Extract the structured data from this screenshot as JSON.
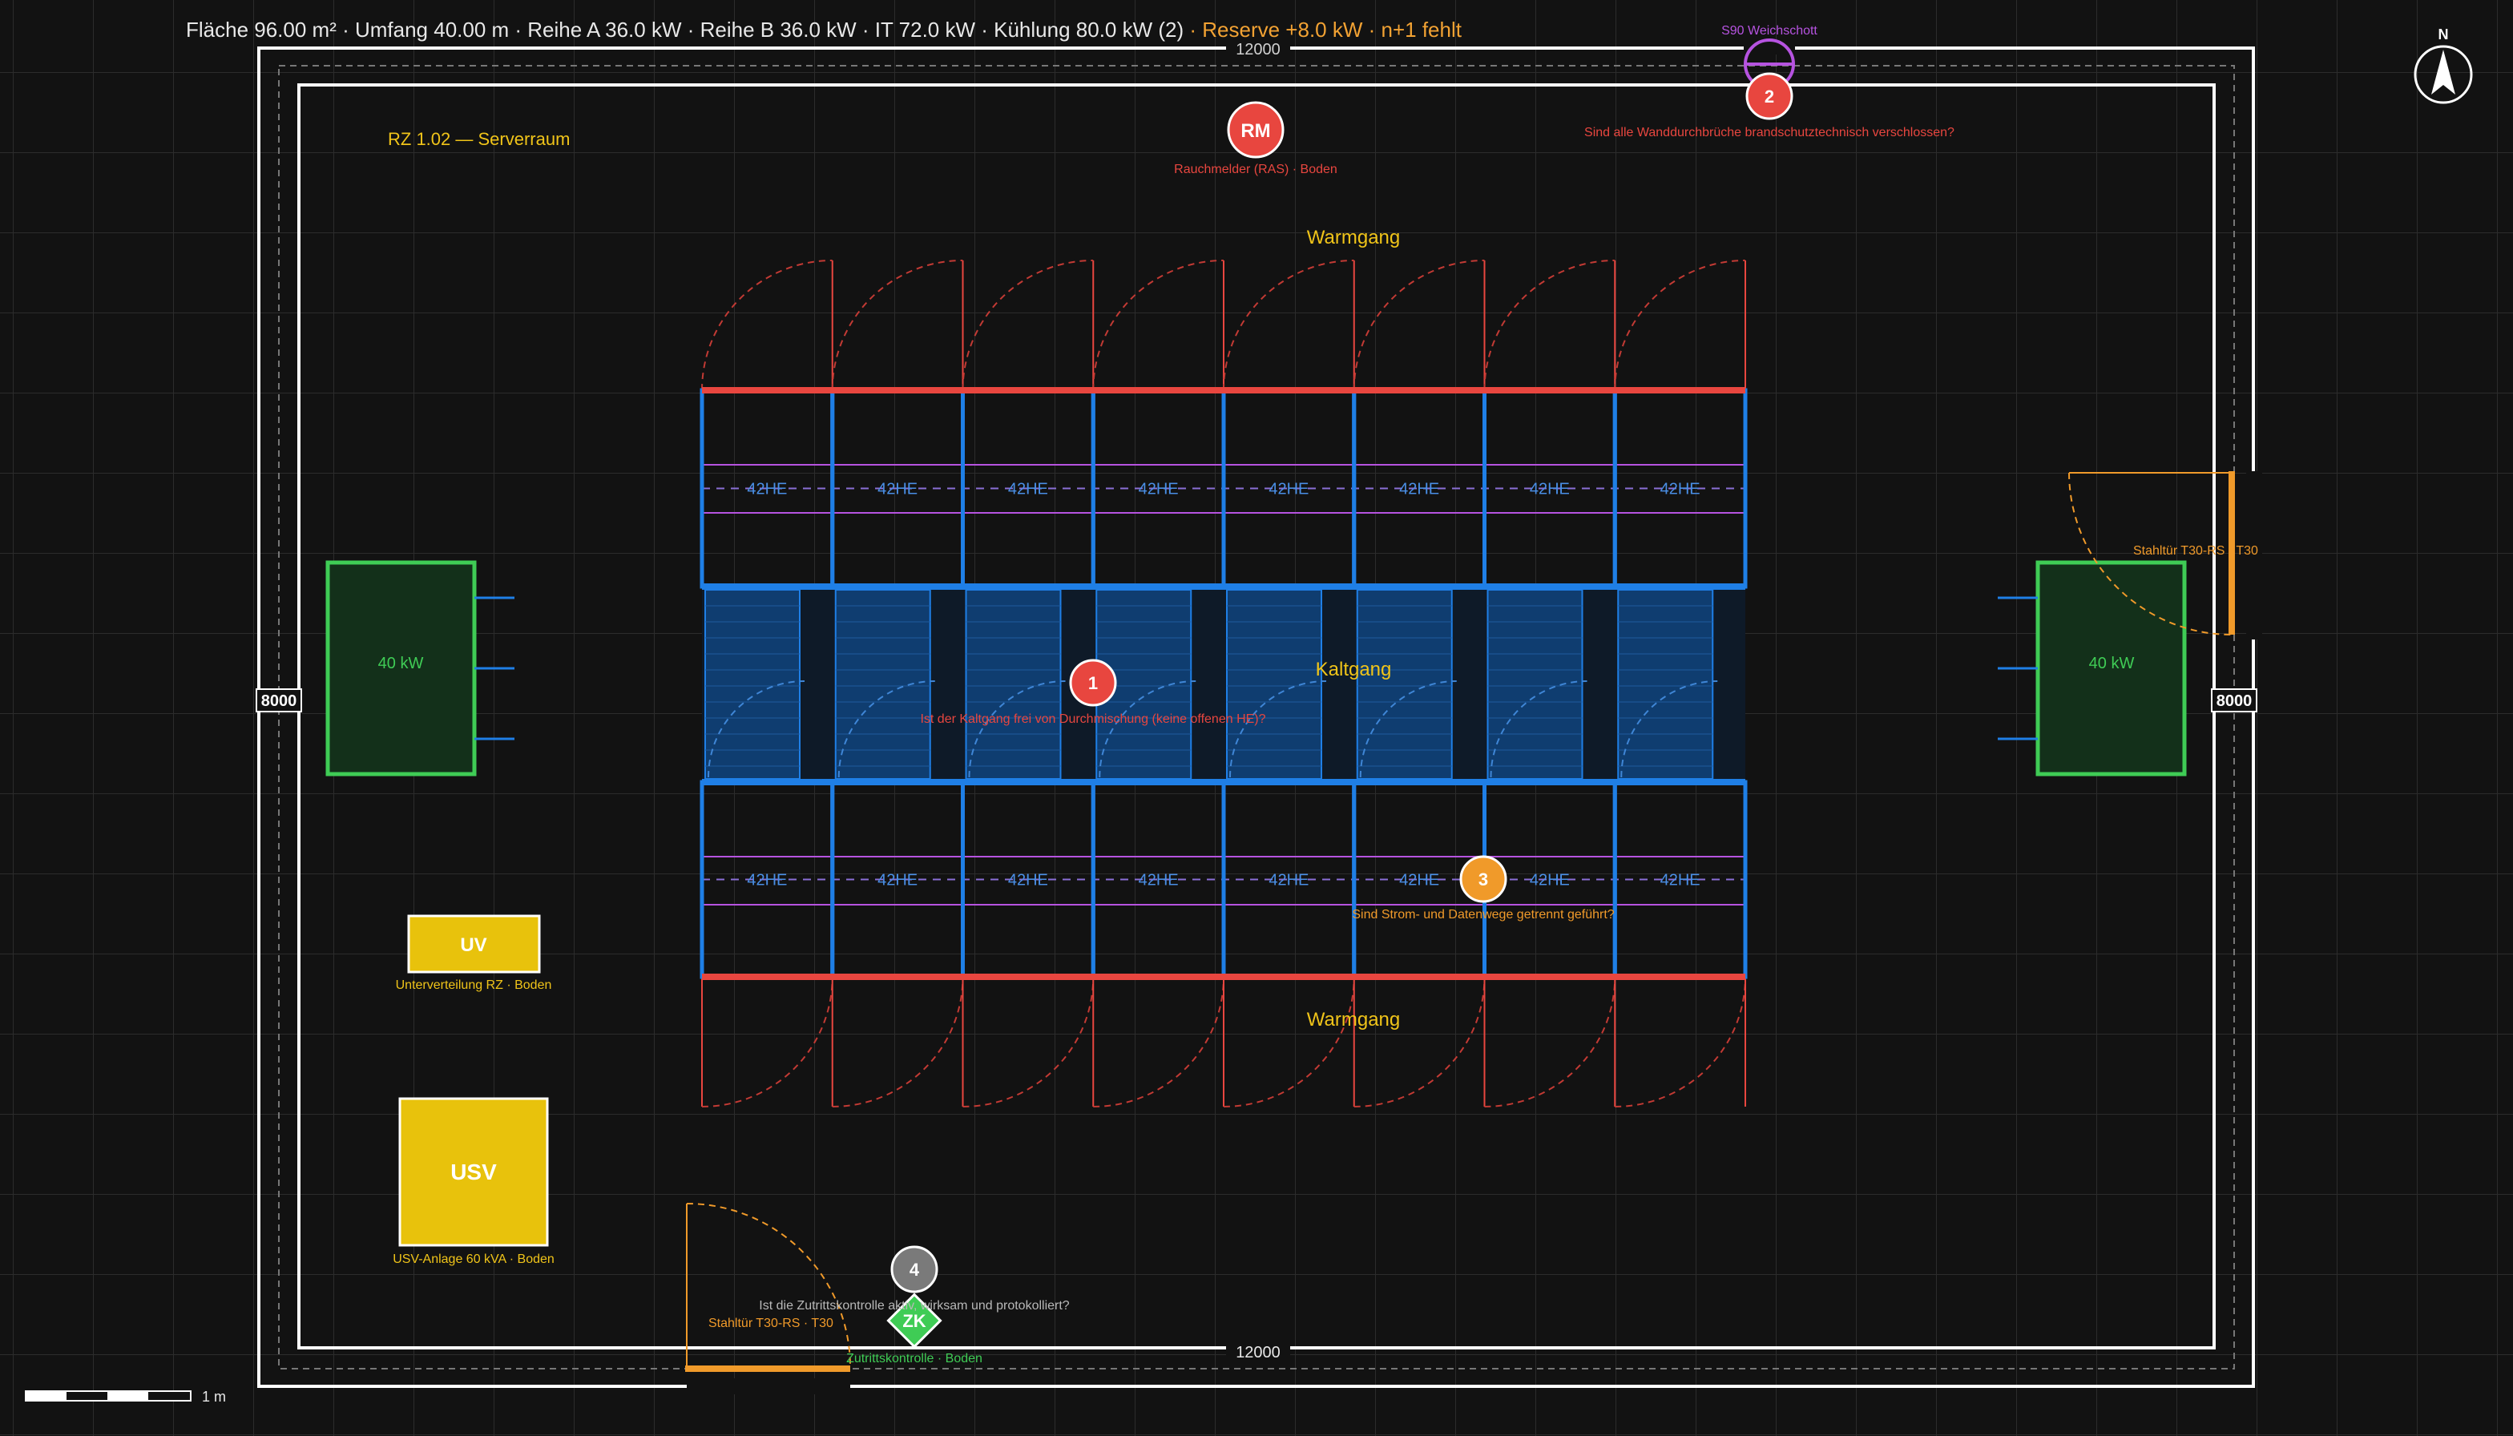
{
  "header": {
    "area": "Fläche 96.00 m² · Umfang 40.00 m · Reihe A 36.0 kW · Reihe B 36.0 kW · IT 72.0 kW · Kühlung 80.0 kW (2)",
    "warning": "· Reserve +8.0 kW · n+1 fehlt"
  },
  "dims": {
    "top": "12000",
    "bottom": "12000",
    "left": "8000",
    "right": "8000"
  },
  "room_label": "RZ 1.02 — Serverraum",
  "aisles": {
    "hot_top": "Warmgang",
    "cold": "Kaltgang",
    "hot_bottom": "Warmgang"
  },
  "rack_label": "42HE",
  "racks_per_row": 8,
  "cooling": {
    "left_label": "40 kW",
    "right_label": "40 kW"
  },
  "devices": {
    "smoke": {
      "short": "RM",
      "label": "Rauchmelder (RAS) · Boden"
    },
    "sub_distribution": {
      "short": "UV",
      "label": "Unterverteilung RZ · Boden"
    },
    "ups": {
      "short": "USV",
      "label": "USV-Anlage 60 kVA · Boden"
    },
    "access": {
      "short": "ZK",
      "label": "Zutrittskontrolle · Boden"
    },
    "fire_seal": {
      "label": "S90 Weichschott"
    }
  },
  "doors": {
    "right": "Stahltür T30-RS · T30",
    "bottom": "Stahltür T30-RS · T30"
  },
  "checks": [
    {
      "num": "1",
      "question": "Ist der Kaltgang frei von Durchmischung (keine offenen HE)?"
    },
    {
      "num": "2",
      "question": "Sind alle Wanddurchbrüche brandschutztechnisch verschlossen?"
    },
    {
      "num": "3",
      "question": "Sind Strom- und Datenwege getrennt geführt?"
    },
    {
      "num": "4",
      "question": "Ist die Zutrittskontrolle aktiv, wirksam und protokolliert?"
    }
  ],
  "compass": "N",
  "scale": "1 m",
  "colors": {
    "background": "#121212",
    "wall": "#ffffff",
    "rack": "#1f7fe6",
    "hot_aisle": "#e8463f",
    "accent_yellow": "#f0c419",
    "cooling": "#3fcc55",
    "door": "#f09a2a",
    "seal": "#b653e0",
    "check_red": "#e8463f",
    "check_orange": "#f09a2a",
    "check_grey": "#7a7a7a"
  }
}
